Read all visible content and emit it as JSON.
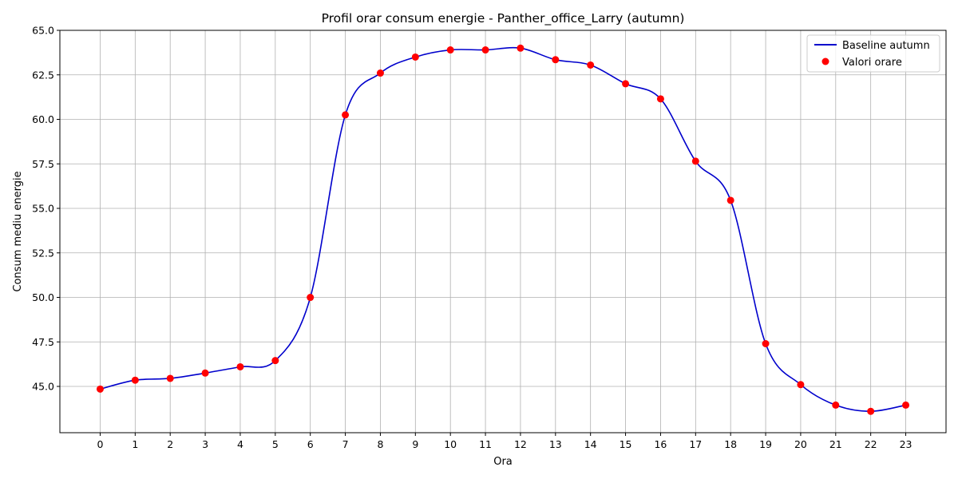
{
  "chart_data": {
    "type": "line",
    "title": "Profil orar consum energie - Panther_office_Larry (autumn)",
    "xlabel": "Ora",
    "ylabel": "Consum mediu energie",
    "x": [
      0,
      1,
      2,
      3,
      4,
      5,
      6,
      7,
      8,
      9,
      10,
      11,
      12,
      13,
      14,
      15,
      16,
      17,
      18,
      19,
      20,
      21,
      22,
      23
    ],
    "xlim": [
      -1.15,
      24.15
    ],
    "ylim": [
      42.4,
      65.0
    ],
    "yticks": [
      45.0,
      47.5,
      50.0,
      52.5,
      55.0,
      57.5,
      60.0,
      62.5,
      65.0
    ],
    "ytick_labels": [
      "45.0",
      "47.5",
      "50.0",
      "52.5",
      "55.0",
      "57.5",
      "60.0",
      "62.5",
      "65.0"
    ],
    "grid": true,
    "legend_position": "top-right",
    "series": [
      {
        "name": "Baseline autumn",
        "kind": "line",
        "color": "#0000cc",
        "values": [
          44.85,
          45.35,
          45.45,
          45.75,
          46.1,
          46.45,
          50.0,
          60.25,
          62.6,
          63.5,
          63.9,
          63.9,
          64.0,
          63.35,
          63.05,
          62.0,
          61.15,
          57.65,
          55.45,
          47.4,
          45.1,
          43.95,
          43.6,
          43.95
        ]
      },
      {
        "name": "Valori orare",
        "kind": "scatter",
        "color": "#ff0000",
        "values": [
          44.85,
          45.35,
          45.45,
          45.75,
          46.1,
          46.45,
          50.0,
          60.25,
          62.6,
          63.5,
          63.9,
          63.9,
          64.0,
          63.35,
          63.05,
          62.0,
          61.15,
          57.65,
          55.45,
          47.4,
          45.1,
          43.95,
          43.6,
          43.95
        ]
      }
    ]
  }
}
